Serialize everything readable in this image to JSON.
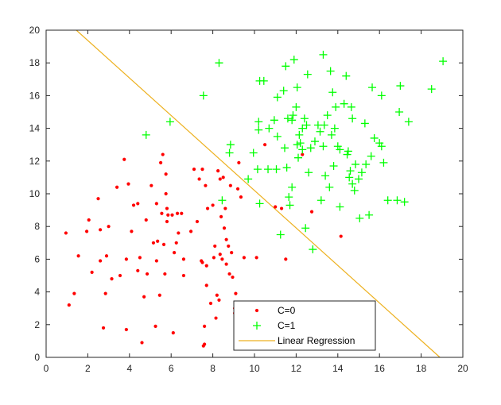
{
  "chart_data": {
    "type": "scatter",
    "title": "",
    "xlabel": "",
    "ylabel": "",
    "xlim": [
      0,
      20
    ],
    "ylim": [
      0,
      20
    ],
    "x_ticks": [
      0,
      2,
      4,
      6,
      8,
      10,
      12,
      14,
      16,
      18,
      20
    ],
    "y_ticks": [
      0,
      2,
      4,
      6,
      8,
      10,
      12,
      14,
      16,
      18,
      20
    ],
    "grid": false,
    "legend_position": "bottom-right",
    "series": [
      {
        "name": "C=0",
        "marker": "dot",
        "color": "#ff0000",
        "points": [
          [
            0.95,
            7.6
          ],
          [
            1.1,
            3.2
          ],
          [
            1.35,
            3.9
          ],
          [
            1.55,
            6.2
          ],
          [
            1.95,
            7.7
          ],
          [
            2.05,
            8.4
          ],
          [
            2.2,
            5.2
          ],
          [
            2.5,
            9.7
          ],
          [
            2.6,
            5.9
          ],
          [
            2.6,
            7.8
          ],
          [
            2.75,
            1.8
          ],
          [
            2.85,
            3.9
          ],
          [
            2.9,
            6.2
          ],
          [
            3.0,
            8.0
          ],
          [
            3.15,
            4.8
          ],
          [
            3.4,
            10.4
          ],
          [
            3.55,
            5.0
          ],
          [
            3.75,
            12.1
          ],
          [
            3.85,
            1.7
          ],
          [
            3.85,
            6.0
          ],
          [
            3.95,
            10.6
          ],
          [
            4.1,
            7.7
          ],
          [
            4.2,
            9.3
          ],
          [
            4.4,
            9.4
          ],
          [
            4.4,
            5.3
          ],
          [
            4.5,
            6.1
          ],
          [
            4.6,
            0.9
          ],
          [
            4.7,
            3.7
          ],
          [
            4.8,
            8.4
          ],
          [
            4.85,
            5.1
          ],
          [
            5.05,
            10.5
          ],
          [
            5.15,
            7.0
          ],
          [
            5.25,
            1.9
          ],
          [
            5.3,
            9.4
          ],
          [
            5.3,
            5.9
          ],
          [
            5.35,
            7.1
          ],
          [
            5.45,
            3.8
          ],
          [
            5.5,
            11.9
          ],
          [
            5.55,
            8.8
          ],
          [
            5.6,
            12.4
          ],
          [
            5.65,
            6.9
          ],
          [
            5.7,
            5.1
          ],
          [
            5.75,
            10.0
          ],
          [
            5.75,
            11.2
          ],
          [
            5.8,
            9.1
          ],
          [
            5.8,
            8.3
          ],
          [
            5.85,
            8.7
          ],
          [
            6.05,
            8.7
          ],
          [
            6.1,
            1.5
          ],
          [
            6.15,
            6.4
          ],
          [
            6.25,
            7.0
          ],
          [
            6.3,
            8.8
          ],
          [
            6.35,
            7.6
          ],
          [
            6.5,
            8.8
          ],
          [
            6.6,
            6.0
          ],
          [
            6.6,
            5.0
          ],
          [
            6.95,
            7.7
          ],
          [
            7.1,
            11.5
          ],
          [
            7.25,
            8.3
          ],
          [
            7.35,
            10.9
          ],
          [
            7.45,
            5.9
          ],
          [
            7.5,
            11.5
          ],
          [
            7.5,
            5.8
          ],
          [
            7.55,
            0.7
          ],
          [
            7.6,
            0.8
          ],
          [
            7.6,
            1.9
          ],
          [
            7.65,
            10.5
          ],
          [
            7.7,
            5.6
          ],
          [
            7.7,
            4.4
          ],
          [
            7.75,
            9.1
          ],
          [
            7.9,
            3.3
          ],
          [
            8.0,
            9.3
          ],
          [
            8.05,
            6.1
          ],
          [
            8.1,
            6.8
          ],
          [
            8.15,
            2.4
          ],
          [
            8.2,
            3.8
          ],
          [
            8.25,
            11.4
          ],
          [
            8.3,
            3.5
          ],
          [
            8.35,
            6.3
          ],
          [
            8.35,
            10.9
          ],
          [
            8.4,
            8.6
          ],
          [
            8.45,
            6.0
          ],
          [
            8.5,
            11.0
          ],
          [
            8.55,
            7.9
          ],
          [
            8.6,
            9.1
          ],
          [
            8.65,
            5.7
          ],
          [
            8.65,
            7.2
          ],
          [
            8.75,
            6.8
          ],
          [
            8.8,
            5.1
          ],
          [
            8.85,
            10.5
          ],
          [
            8.9,
            6.4
          ],
          [
            8.95,
            4.9
          ],
          [
            9.05,
            3.0
          ],
          [
            9.05,
            2.7
          ],
          [
            9.1,
            3.9
          ],
          [
            9.2,
            10.3
          ],
          [
            9.25,
            11.9
          ],
          [
            9.35,
            9.8
          ],
          [
            9.5,
            6.1
          ],
          [
            10.1,
            6.1
          ],
          [
            10.5,
            13.0
          ],
          [
            11.0,
            9.2
          ],
          [
            11.3,
            9.1
          ],
          [
            11.5,
            6.0
          ],
          [
            12.3,
            12.4
          ],
          [
            12.75,
            8.9
          ],
          [
            14.15,
            7.4
          ]
        ]
      },
      {
        "name": "C=1",
        "marker": "plus",
        "color": "#00ff00",
        "points": [
          [
            4.8,
            13.6
          ],
          [
            5.95,
            14.4
          ],
          [
            7.55,
            16.0
          ],
          [
            8.3,
            18.0
          ],
          [
            8.45,
            9.6
          ],
          [
            8.8,
            12.5
          ],
          [
            8.85,
            13.0
          ],
          [
            9.7,
            10.9
          ],
          [
            9.95,
            12.5
          ],
          [
            10.15,
            11.5
          ],
          [
            10.2,
            13.9
          ],
          [
            10.2,
            14.4
          ],
          [
            10.25,
            9.4
          ],
          [
            10.25,
            16.9
          ],
          [
            10.45,
            16.9
          ],
          [
            10.65,
            11.5
          ],
          [
            10.7,
            14.0
          ],
          [
            10.95,
            14.5
          ],
          [
            11.05,
            11.5
          ],
          [
            11.1,
            13.5
          ],
          [
            11.1,
            15.9
          ],
          [
            11.25,
            7.5
          ],
          [
            11.4,
            16.3
          ],
          [
            11.45,
            12.8
          ],
          [
            11.5,
            17.8
          ],
          [
            11.55,
            11.6
          ],
          [
            11.6,
            14.6
          ],
          [
            11.65,
            9.8
          ],
          [
            11.7,
            9.3
          ],
          [
            11.8,
            14.5
          ],
          [
            11.8,
            10.4
          ],
          [
            11.85,
            14.8
          ],
          [
            11.9,
            18.2
          ],
          [
            12.0,
            15.3
          ],
          [
            12.05,
            16.5
          ],
          [
            12.05,
            13.0
          ],
          [
            12.1,
            12.2
          ],
          [
            12.15,
            13.6
          ],
          [
            12.2,
            13.1
          ],
          [
            12.3,
            14.0
          ],
          [
            12.3,
            12.7
          ],
          [
            12.4,
            14.6
          ],
          [
            12.45,
            7.9
          ],
          [
            12.5,
            14.2
          ],
          [
            12.55,
            17.3
          ],
          [
            12.6,
            11.3
          ],
          [
            12.7,
            12.8
          ],
          [
            12.8,
            6.6
          ],
          [
            12.9,
            13.2
          ],
          [
            13.05,
            14.2
          ],
          [
            13.15,
            13.8
          ],
          [
            13.2,
            9.6
          ],
          [
            13.3,
            18.5
          ],
          [
            13.3,
            12.9
          ],
          [
            13.35,
            14.2
          ],
          [
            13.4,
            11.1
          ],
          [
            13.5,
            14.8
          ],
          [
            13.6,
            10.4
          ],
          [
            13.65,
            17.5
          ],
          [
            13.7,
            13.6
          ],
          [
            13.75,
            16.2
          ],
          [
            13.8,
            11.7
          ],
          [
            13.85,
            14.0
          ],
          [
            13.9,
            15.3
          ],
          [
            14.0,
            12.9
          ],
          [
            14.1,
            9.2
          ],
          [
            14.1,
            12.7
          ],
          [
            14.3,
            15.5
          ],
          [
            14.4,
            17.2
          ],
          [
            14.45,
            12.4
          ],
          [
            14.5,
            12.6
          ],
          [
            14.55,
            11.0
          ],
          [
            14.6,
            11.4
          ],
          [
            14.65,
            15.3
          ],
          [
            14.7,
            10.6
          ],
          [
            14.7,
            14.6
          ],
          [
            14.8,
            10.2
          ],
          [
            14.85,
            11.8
          ],
          [
            15.0,
            10.9
          ],
          [
            15.05,
            8.5
          ],
          [
            15.15,
            11.3
          ],
          [
            15.3,
            14.3
          ],
          [
            15.35,
            11.8
          ],
          [
            15.5,
            8.7
          ],
          [
            15.6,
            12.3
          ],
          [
            15.65,
            16.5
          ],
          [
            15.75,
            13.4
          ],
          [
            16.0,
            13.1
          ],
          [
            16.1,
            12.9
          ],
          [
            16.1,
            16.0
          ],
          [
            16.2,
            11.9
          ],
          [
            16.4,
            9.6
          ],
          [
            16.85,
            9.6
          ],
          [
            16.95,
            15.0
          ],
          [
            17.0,
            16.6
          ],
          [
            17.2,
            9.5
          ],
          [
            17.4,
            14.4
          ],
          [
            18.5,
            16.4
          ],
          [
            19.05,
            18.1
          ]
        ]
      },
      {
        "name": "Linear Regression",
        "marker": "line",
        "color": "#edb120",
        "points": [
          [
            1.45,
            20
          ],
          [
            18.9,
            0
          ]
        ]
      }
    ]
  }
}
